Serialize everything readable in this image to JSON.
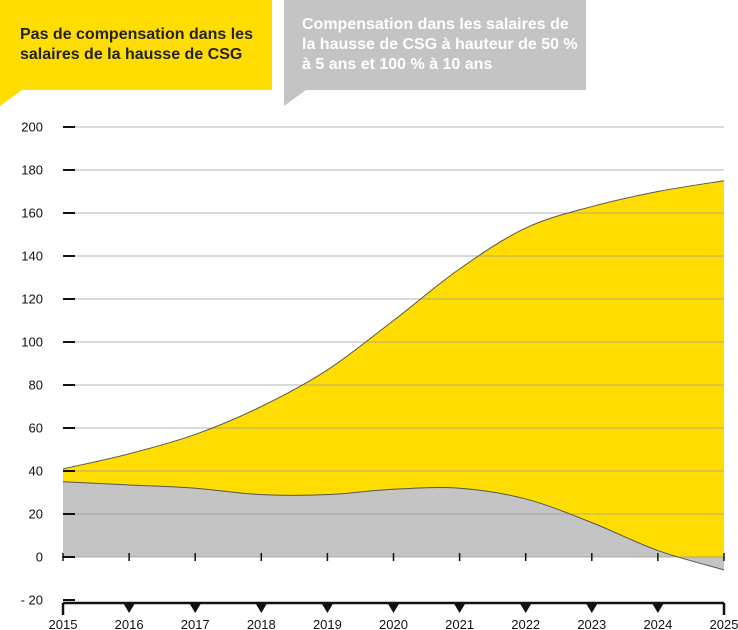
{
  "legend": {
    "yellow": {
      "label": "Pas de compensation dans les salaires de la hausse de CSG",
      "color": "#ffdd00"
    },
    "gray": {
      "label": "Compensation dans les salaires de la hausse de CSG à hauteur de 50 % à 5 ans et 100 % à 10 ans",
      "color": "#c4c4c4"
    }
  },
  "chart_data": {
    "type": "area",
    "title": "",
    "xlabel": "",
    "ylabel": "",
    "x": [
      2015,
      2016,
      2017,
      2018,
      2019,
      2020,
      2021,
      2022,
      2023,
      2024,
      2025
    ],
    "xlim": [
      2015,
      2025
    ],
    "ylim": [
      -20,
      200
    ],
    "yticks": [
      -20,
      0,
      20,
      40,
      60,
      80,
      100,
      120,
      140,
      160,
      180,
      200
    ],
    "ytick_labels": [
      "- 20",
      "0",
      "20",
      "40",
      "60",
      "80",
      "100",
      "120",
      "140",
      "160",
      "180",
      "200"
    ],
    "xtick_labels": [
      "2015",
      "2016",
      "2017",
      "2018",
      "2019",
      "2020",
      "2021",
      "2022",
      "2023",
      "2024",
      "2025"
    ],
    "grid": true,
    "series": [
      {
        "name": "Pas de compensation dans les salaires de la hausse de CSG",
        "color": "#ffdd00",
        "values": [
          41,
          48,
          57,
          70,
          87,
          110,
          134,
          153,
          163,
          170,
          175
        ]
      },
      {
        "name": "Compensation dans les salaires de la hausse de CSG à hauteur de 50 % à 5 ans et 100 % à 10 ans",
        "color": "#c4c4c4",
        "values": [
          35,
          33.5,
          32,
          29,
          29,
          31.5,
          32,
          27,
          16,
          3,
          -6
        ]
      }
    ]
  }
}
